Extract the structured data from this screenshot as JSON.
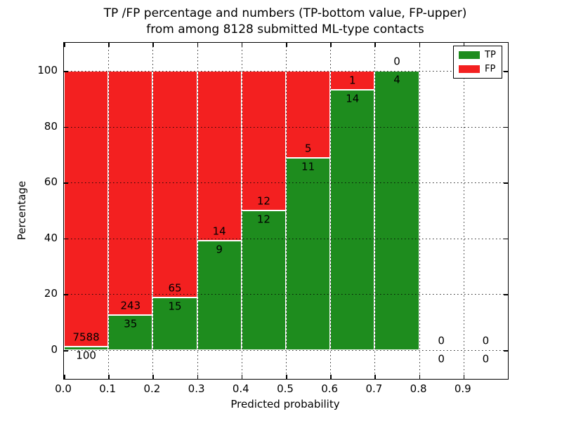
{
  "title": {
    "line1": "TP /FP percentage and numbers (TP-bottom value, FP-upper)",
    "line2": "from among 8128 submitted ML-type contacts"
  },
  "axes": {
    "xlabel": "Predicted probability",
    "ylabel": "Percentage",
    "x_tick_labels": [
      "0.0",
      "0.1",
      "0.2",
      "0.3",
      "0.4",
      "0.5",
      "0.6",
      "0.7",
      "0.8",
      "0.9"
    ],
    "y_tick_labels": [
      "0",
      "20",
      "40",
      "60",
      "80",
      "100"
    ],
    "y_tick_values": [
      0,
      20,
      40,
      60,
      80,
      100
    ],
    "xlim": [
      0.0,
      1.0
    ],
    "ylim": [
      -10,
      110
    ],
    "grid_style": "dotted"
  },
  "legend": {
    "position": "upper-right",
    "entries": [
      {
        "label": "TP",
        "color": "#1e8c1e"
      },
      {
        "label": "FP",
        "color": "#f32020"
      }
    ]
  },
  "chart_data": {
    "type": "bar",
    "stacked": true,
    "normalized_to_percent": true,
    "title": "TP /FP percentage and numbers (TP-bottom value, FP-upper) from among 8128 submitted ML-type contacts",
    "xlabel": "Predicted probability",
    "ylabel": "Percentage",
    "total_contacts": 8128,
    "bin_width": 0.1,
    "bin_starts": [
      0.0,
      0.1,
      0.2,
      0.3,
      0.4,
      0.5,
      0.6,
      0.7,
      0.8,
      0.9
    ],
    "series": [
      {
        "name": "TP",
        "color": "#1e8c1e",
        "counts": [
          100,
          35,
          15,
          9,
          12,
          11,
          14,
          4,
          0,
          0
        ]
      },
      {
        "name": "FP",
        "color": "#f32020",
        "counts": [
          7588,
          243,
          65,
          14,
          12,
          5,
          1,
          0,
          0,
          0
        ]
      }
    ],
    "tp_percent": [
      1.3,
      12.59,
      18.75,
      39.13,
      50.0,
      68.75,
      93.33,
      100.0,
      null,
      null
    ]
  }
}
